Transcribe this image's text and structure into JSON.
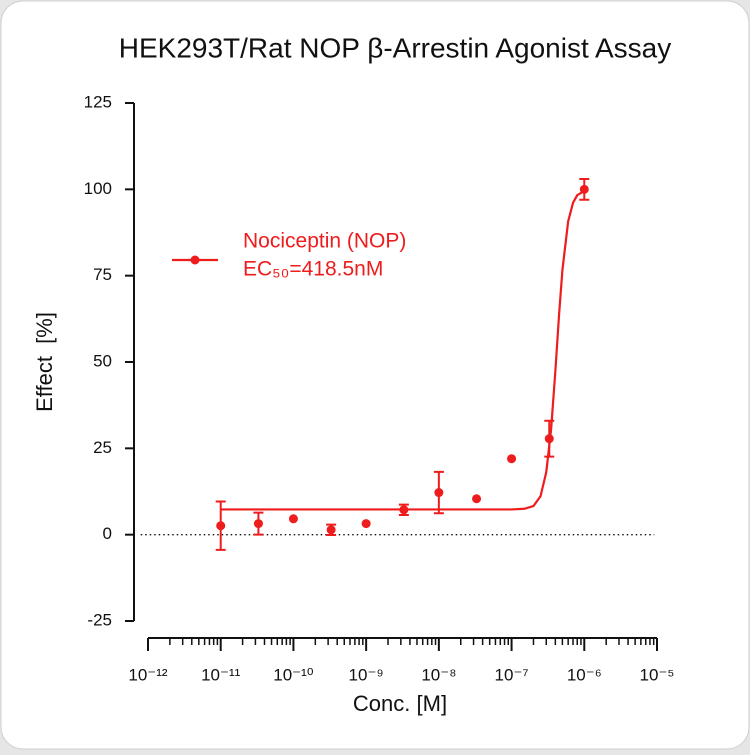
{
  "chart_data": {
    "type": "scatter",
    "title": "HEK293T/Rat NOP β-Arrestin Agonist Assay",
    "xlabel": "Conc. [M]",
    "ylabel": "Effect  [%]",
    "xscale": "log",
    "xlim": [
      1e-12,
      1e-05
    ],
    "xticks": [
      {
        "value": 1e-12,
        "label": "10⁻¹²"
      },
      {
        "value": 1e-11,
        "label": "10⁻¹¹"
      },
      {
        "value": 1e-10,
        "label": "10⁻¹⁰"
      },
      {
        "value": 1e-09,
        "label": "10⁻⁹"
      },
      {
        "value": 1e-08,
        "label": "10⁻⁸"
      },
      {
        "value": 1e-07,
        "label": "10⁻⁷"
      },
      {
        "value": 1e-06,
        "label": "10⁻⁶"
      },
      {
        "value": 1e-05,
        "label": "10⁻⁵"
      }
    ],
    "xminorticks": [
      2e-12,
      3e-12,
      4e-12,
      5e-12,
      6e-12,
      7e-12,
      8e-12,
      9e-12,
      2e-11,
      3e-11,
      4e-11,
      5e-11,
      6e-11,
      7e-11,
      8e-11,
      9e-11,
      2e-10,
      3e-10,
      4e-10,
      5e-10,
      6e-10,
      7e-10,
      8e-10,
      9e-10,
      2e-09,
      3e-09,
      4e-09,
      5e-09,
      6e-09,
      7e-09,
      8e-09,
      9e-09,
      2e-08,
      3e-08,
      4e-08,
      5e-08,
      6e-08,
      7e-08,
      8e-08,
      9e-08,
      2e-07,
      3e-07,
      4e-07,
      5e-07,
      6e-07,
      7e-07,
      8e-07,
      9e-07,
      2e-06,
      3e-06,
      4e-06,
      5e-06,
      6e-06,
      7e-06,
      8e-06,
      9e-06
    ],
    "ylim": [
      -25,
      125
    ],
    "yticks": [
      -25,
      0,
      25,
      50,
      75,
      100,
      125
    ],
    "zero_line": true,
    "legend": "upper left",
    "series": [
      {
        "name": "Nociceptin (NOP)",
        "color": "#ee1c1c",
        "x": [
          1e-11,
          3.3e-11,
          1e-10,
          3.3e-10,
          1e-09,
          3.3e-09,
          1e-08,
          3.3e-08,
          1e-07,
          3.3e-07,
          1e-06
        ],
        "values": [
          2.6,
          3.2,
          4.6,
          1.4,
          3.2,
          7.2,
          12.2,
          10.4,
          22,
          27.8,
          100
        ],
        "errors": [
          7,
          3.2,
          null,
          1.5,
          null,
          1.5,
          6,
          null,
          null,
          5.2,
          3
        ]
      }
    ],
    "fit": {
      "x": [
        1e-11,
        1e-10,
        1e-09,
        1e-08,
        1e-07,
        1.5e-07,
        2e-07,
        2.5e-07,
        3e-07,
        3.5e-07,
        4e-07,
        4.5e-07,
        5e-07,
        6e-07,
        7e-07,
        8e-07,
        1e-06
      ],
      "values": [
        7.3,
        7.3,
        7.3,
        7.3,
        7.3,
        7.5,
        8.3,
        11.1,
        18.1,
        30.6,
        47.3,
        63.7,
        76.6,
        90.7,
        96.1,
        98.3,
        99.5
      ]
    },
    "annotations": [
      "EC₅₀=418.5nM"
    ]
  }
}
